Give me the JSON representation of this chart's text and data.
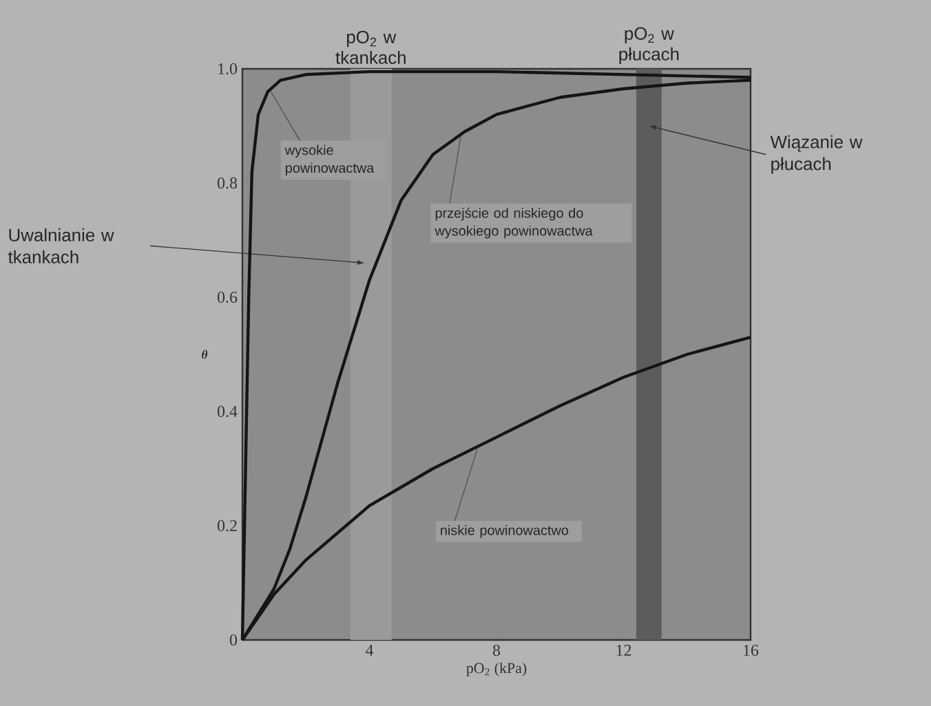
{
  "chart_data": {
    "type": "line",
    "xlabel": "pO$_{2}$ (kPa)",
    "ylabel": "θ",
    "xlim": [
      0,
      16
    ],
    "ylim": [
      0,
      1
    ],
    "xticks": [
      4,
      8,
      12,
      16
    ],
    "yticks": [
      0,
      0.2,
      0.4,
      0.6,
      0.8,
      {
        "value": 1,
        "label": "1.0"
      }
    ],
    "grid": false,
    "marker": "none",
    "line_style": "solid",
    "series": [
      {
        "color": "#151515",
        "x": [
          0,
          0.1,
          0.2,
          0.3,
          0.5,
          0.8,
          1.2,
          2,
          4,
          8,
          12,
          16
        ],
        "values": [
          0,
          0.3,
          0.6,
          0.82,
          0.92,
          0.96,
          0.98,
          0.99,
          0.995,
          0.995,
          0.99,
          0.985
        ]
      },
      {
        "color": "#151515",
        "x": [
          0,
          1,
          1.5,
          2,
          2.5,
          3,
          3.5,
          4,
          4.5,
          5,
          6,
          7,
          8,
          10,
          12,
          14,
          16
        ],
        "values": [
          0,
          0.09,
          0.16,
          0.25,
          0.35,
          0.45,
          0.54,
          0.63,
          0.7,
          0.77,
          0.85,
          0.89,
          0.92,
          0.95,
          0.965,
          0.975,
          0.98
        ]
      },
      {
        "color": "#151515",
        "x": [
          0,
          1,
          2,
          4,
          6,
          8,
          10,
          12,
          14,
          16
        ],
        "values": [
          0,
          0.08,
          0.14,
          0.235,
          0.3,
          0.355,
          0.41,
          0.46,
          0.5,
          0.53
        ]
      }
    ],
    "bands": [
      {
        "axis": "x",
        "from": 3.4,
        "to": 4.7,
        "label": "pO$_{2}$ w tkankach",
        "color": "#9a9a9a"
      },
      {
        "axis": "x",
        "from": 12.4,
        "to": 13.2,
        "label": "pO$_{2}$ w płucach",
        "color": "#5c5c5c"
      }
    ],
    "annotations": [
      {
        "text": "wysokie powinowactwa",
        "x": 0.9,
        "y": 0.96
      },
      {
        "text": "przejście od niskiego do wysokiego powinowactwa",
        "x": 6.9,
        "y": 0.89
      },
      {
        "text": "niskie powinowactwo",
        "x": 7.4,
        "y": 0.335
      },
      "Uwalnianie w tkankach",
      "Wiązanie w płucach"
    ]
  }
}
